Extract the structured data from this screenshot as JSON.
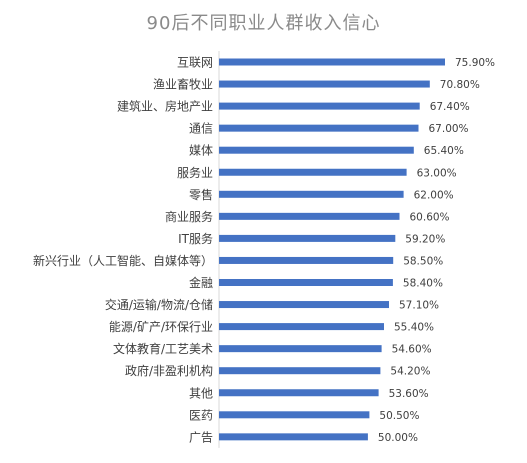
{
  "chart_data": {
    "type": "bar",
    "orientation": "horizontal",
    "title": "90后不同职业人群收入信心",
    "categories": [
      "互联网",
      "渔业畜牧业",
      "建筑业、房地产业",
      "通信",
      "媒体",
      "服务业",
      "零售",
      "商业服务",
      "IT服务",
      "新兴行业（人工智能、自媒体等）",
      "金融",
      "交通/运输/物流/仓储",
      "能源/矿产/环保行业",
      "文体教育/工艺美术",
      "政府/非盈利机构",
      "其他",
      "医药",
      "广告"
    ],
    "values": [
      75.9,
      70.8,
      67.4,
      67.0,
      65.4,
      63.0,
      62.0,
      60.6,
      59.2,
      58.5,
      58.4,
      57.1,
      55.4,
      54.6,
      54.2,
      53.6,
      50.5,
      50.0
    ],
    "value_labels": [
      "75.90%",
      "70.80%",
      "67.40%",
      "67.00%",
      "65.40%",
      "63.00%",
      "62.00%",
      "60.60%",
      "59.20%",
      "58.50%",
      "58.40%",
      "57.10%",
      "55.40%",
      "54.60%",
      "54.20%",
      "53.60%",
      "50.50%",
      "50.00%"
    ],
    "xlim": [
      0,
      100
    ],
    "grid": false,
    "bar_color": "#4472c4",
    "label_color": "#404040"
  }
}
